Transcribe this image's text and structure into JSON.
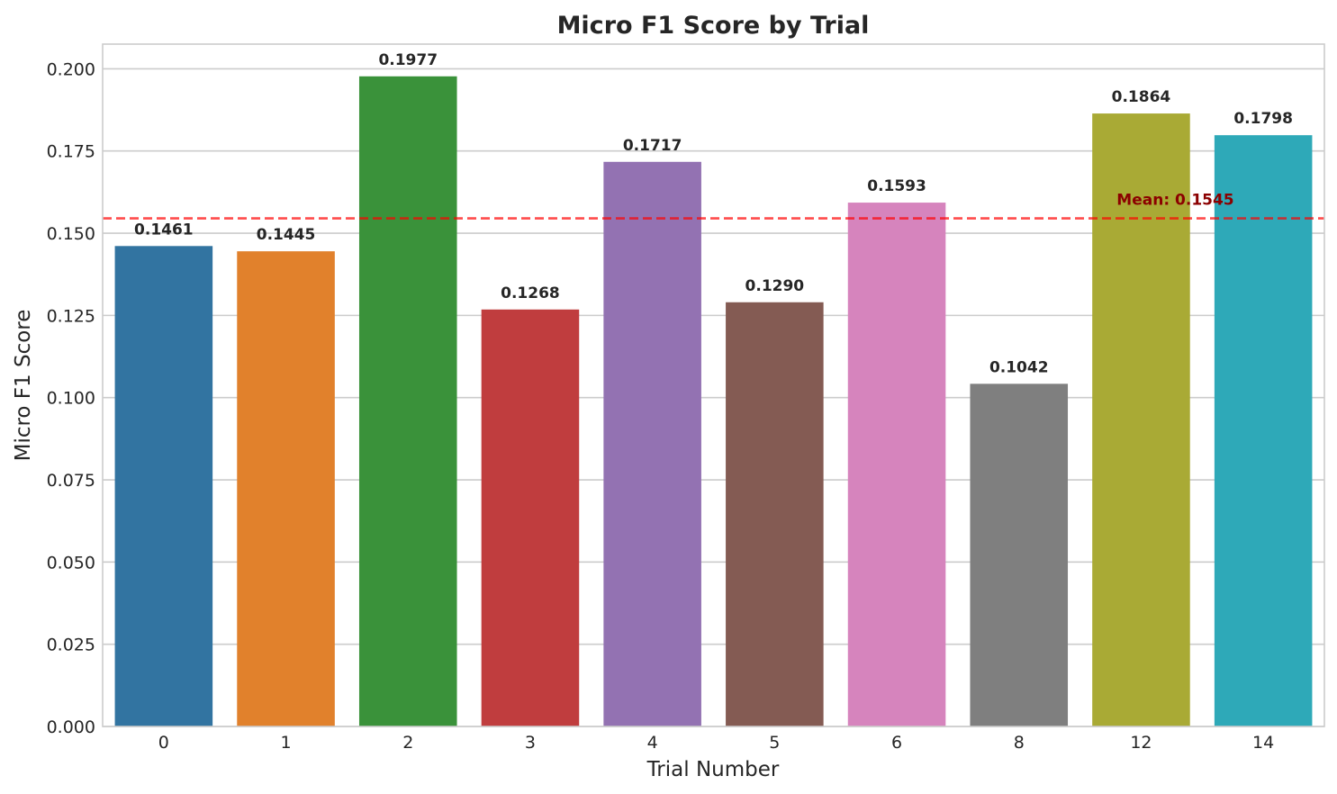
{
  "chart_data": {
    "type": "bar",
    "title": "Micro F1 Score by Trial",
    "xlabel": "Trial Number",
    "ylabel": "Micro F1 Score",
    "categories": [
      "0",
      "1",
      "2",
      "3",
      "4",
      "5",
      "6",
      "8",
      "12",
      "14"
    ],
    "values": [
      0.1461,
      0.1445,
      0.1977,
      0.1268,
      0.1717,
      0.129,
      0.1593,
      0.1042,
      0.1864,
      0.1798
    ],
    "value_labels": [
      "0.1461",
      "0.1445",
      "0.1977",
      "0.1268",
      "0.1717",
      "0.1290",
      "0.1593",
      "0.1042",
      "0.1864",
      "0.1798"
    ],
    "colors": [
      "#3274a1",
      "#e1812c",
      "#3a923a",
      "#c03d3e",
      "#9372b2",
      "#845b53",
      "#d684bd",
      "#7f7f7f",
      "#a9aa35",
      "#2ea9b8"
    ],
    "ylim": [
      0,
      0.2075
    ],
    "yticks": [
      0.0,
      0.025,
      0.05,
      0.075,
      0.1,
      0.125,
      0.15,
      0.175,
      0.2
    ],
    "ytick_labels": [
      "0.000",
      "0.025",
      "0.050",
      "0.075",
      "0.100",
      "0.125",
      "0.150",
      "0.175",
      "0.200"
    ],
    "grid": true,
    "mean_line": {
      "value": 0.1545,
      "label": "Mean: 0.1545",
      "color": "#ff0000",
      "label_color": "#8b0000",
      "style": "dashed"
    }
  }
}
